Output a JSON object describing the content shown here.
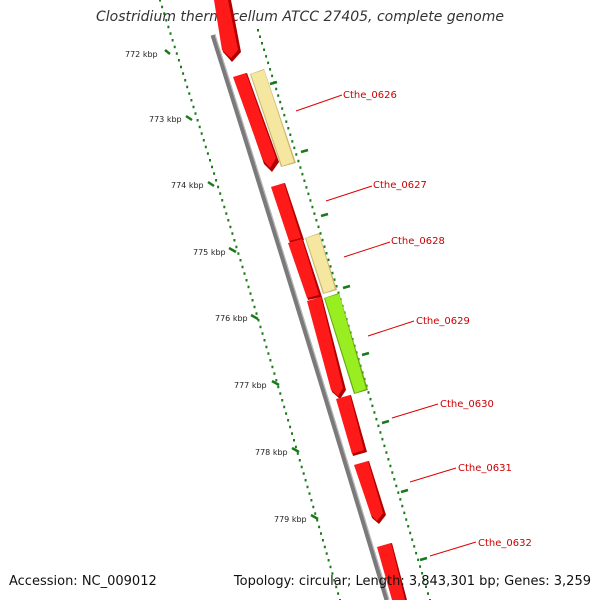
{
  "title": "Clostridium thermocellum ATCC 27405, complete genome",
  "footer": {
    "accession": "Accession: NC_009012",
    "topology": "Topology: circular; Length: 3,843,301 bp; Genes: 3,259"
  },
  "colors": {
    "gene_red": "#ff0000",
    "gene_yellow": "#f5e6a0",
    "gene_green": "#99ee22",
    "backbone": "#888888",
    "ticks": "#1a7a1a",
    "label": "#cc0000"
  },
  "scale_ticks": [
    "772 kbp",
    "773 kbp",
    "774 kbp",
    "775 kbp",
    "776 kbp",
    "777 kbp",
    "778 kbp",
    "779 kbp"
  ],
  "gene_labels": [
    "Cthe_0626",
    "Cthe_0627",
    "Cthe_0628",
    "Cthe_0629",
    "Cthe_0630",
    "Cthe_0631",
    "Cthe_0632"
  ]
}
